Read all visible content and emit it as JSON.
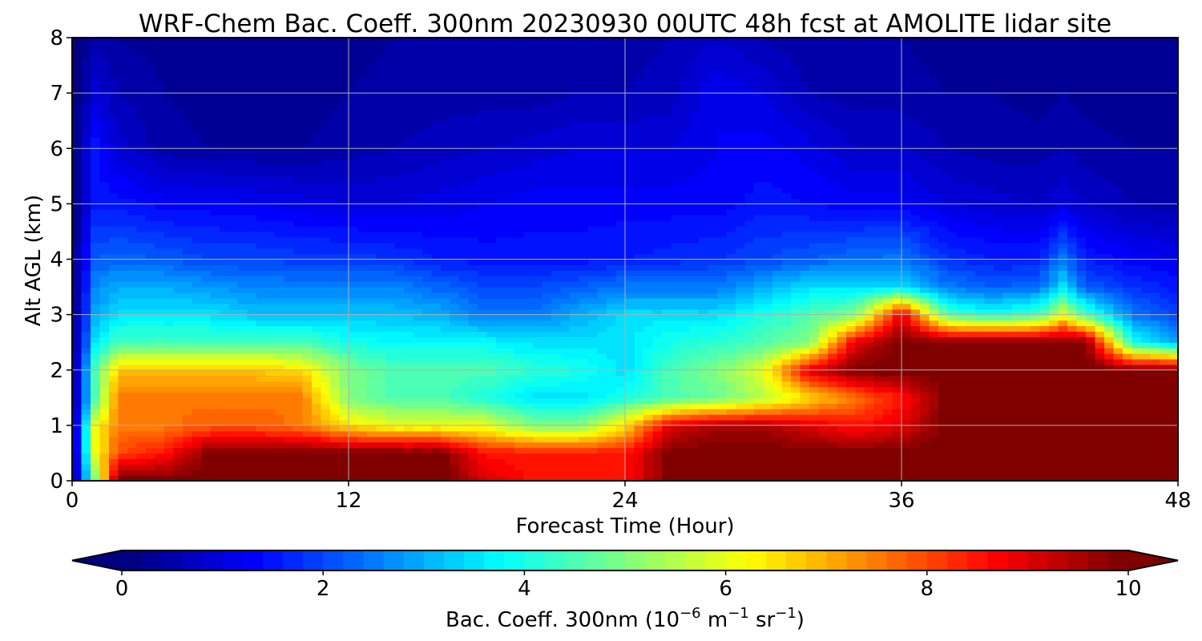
{
  "chart_data": {
    "type": "heatmap",
    "title": "WRF-Chem Bac. Coeff. 300nm  20230930 00UTC 48h fcst at AMOLITE lidar site",
    "xlabel": "Forecast Time (Hour)",
    "ylabel": "Alt AGL (km)",
    "xlim": [
      0,
      48
    ],
    "ylim": [
      0,
      8
    ],
    "xticks": [
      0,
      12,
      24,
      36,
      48
    ],
    "yticks": [
      0,
      1,
      2,
      3,
      4,
      5,
      6,
      7,
      8
    ],
    "grid": true,
    "colormap": "jet",
    "colorbar": {
      "orientation": "horizontal",
      "position": "bottom",
      "range": [
        0,
        10
      ],
      "ticks": [
        0,
        2,
        4,
        6,
        8,
        10
      ],
      "extend": "both",
      "label_main": "Bac. Coeff. 300nm  (10",
      "label_exp1": "−6",
      "label_mid": " m",
      "label_exp2": "−1",
      "label_mid2": " sr",
      "label_exp3": "−1",
      "label_end": ")"
    },
    "x": [
      0,
      1,
      2,
      4,
      6,
      8,
      10,
      12,
      14,
      16,
      18,
      20,
      22,
      24,
      26,
      28,
      30,
      32,
      34,
      36,
      38,
      40,
      42,
      43,
      44,
      46,
      48
    ],
    "y": [
      0,
      0.5,
      1,
      1.5,
      2,
      2.5,
      3,
      3.5,
      4,
      5,
      6,
      7,
      8
    ],
    "z": [
      [
        0,
        5,
        10,
        10,
        10,
        10,
        10,
        10,
        10,
        10,
        9,
        8.5,
        8.5,
        8.5,
        10,
        10,
        10,
        10,
        10,
        10,
        10,
        10,
        10,
        10,
        10,
        10,
        10
      ],
      [
        0,
        6,
        8,
        8.5,
        10,
        10,
        10,
        10,
        10,
        10,
        8.5,
        8.5,
        8.5,
        8.5,
        10,
        10,
        10,
        10,
        10,
        10,
        10,
        10,
        10,
        10,
        10,
        10,
        10
      ],
      [
        0,
        6,
        7.5,
        7.5,
        7.8,
        7.8,
        7.5,
        6.5,
        6,
        6,
        6,
        5,
        5,
        6.5,
        9,
        9.5,
        9.5,
        9,
        8.5,
        9,
        10,
        10,
        10,
        10,
        10,
        10,
        10
      ],
      [
        0,
        4.5,
        7.5,
        7.5,
        7.5,
        7.5,
        7.5,
        5,
        4.5,
        4.5,
        4,
        3.5,
        3.5,
        4,
        4.5,
        4.8,
        5.5,
        6.5,
        7.5,
        8.5,
        10,
        10,
        10,
        10,
        10,
        10,
        10
      ],
      [
        0,
        4.5,
        6.8,
        6.8,
        6.8,
        6.8,
        6.5,
        5,
        4.5,
        4.5,
        4.5,
        4.2,
        4,
        3.5,
        4.5,
        5,
        6,
        9,
        10,
        10,
        10,
        10,
        10,
        10,
        10,
        10,
        10
      ],
      [
        0,
        3.5,
        4.5,
        4.5,
        4.5,
        4.5,
        4.5,
        4,
        3.8,
        3.8,
        3.8,
        3.5,
        3.5,
        3.5,
        4,
        4.2,
        4.5,
        5,
        9,
        10,
        10,
        10,
        10,
        10,
        10,
        4,
        3
      ],
      [
        0,
        3,
        3.5,
        3.5,
        3.5,
        3.2,
        3.2,
        3.2,
        3.2,
        3,
        2.5,
        2.5,
        3,
        3.5,
        3.5,
        3.5,
        4,
        4.5,
        5,
        9,
        4.5,
        4,
        4.5,
        6,
        4.5,
        2.5,
        2
      ],
      [
        0,
        2.6,
        3,
        3,
        2.8,
        2.6,
        2.6,
        2.6,
        2.6,
        2.3,
        2,
        2,
        2.2,
        2.5,
        2.5,
        2.5,
        3,
        3.5,
        3.5,
        3.5,
        2.5,
        2.2,
        2.4,
        3.5,
        2.2,
        1.8,
        1.5
      ],
      [
        0,
        2.2,
        2.3,
        2.2,
        2,
        2,
        1.9,
        1.9,
        1.8,
        1.6,
        1.5,
        1.5,
        1.5,
        1.6,
        1.7,
        1.8,
        2,
        2.2,
        2.4,
        2.5,
        1.8,
        1.6,
        1.6,
        2.5,
        1.6,
        1.3,
        1.2
      ],
      [
        0,
        1.5,
        1.5,
        1.3,
        1.3,
        1.2,
        1.1,
        1,
        1,
        1.1,
        1.2,
        1.3,
        1.3,
        1.3,
        1.3,
        1.3,
        1.5,
        1.4,
        1.3,
        1.3,
        1,
        0.9,
        0.8,
        1,
        0.8,
        0.6,
        0.5
      ],
      [
        0,
        1.5,
        0.9,
        0.5,
        0.4,
        0.4,
        0.4,
        0.5,
        0.6,
        0.7,
        0.8,
        0.9,
        1,
        1,
        1,
        1.2,
        1.3,
        1.1,
        0.8,
        0.8,
        0.6,
        0.5,
        0.5,
        0.6,
        0.5,
        0.4,
        0.4
      ],
      [
        0,
        0.9,
        0.6,
        0.4,
        0.3,
        0.3,
        0.3,
        0.4,
        0.5,
        0.5,
        0.5,
        0.5,
        0.6,
        0.6,
        0.7,
        1.2,
        1,
        0.6,
        0.5,
        0.5,
        0.4,
        0.4,
        0.3,
        0.4,
        0.3,
        0.3,
        0.3
      ],
      [
        0,
        0.5,
        0.4,
        0.3,
        0.3,
        0.3,
        0.3,
        0.3,
        0.4,
        0.4,
        0.4,
        0.4,
        0.5,
        0.5,
        0.6,
        0.8,
        0.6,
        0.4,
        0.4,
        0.4,
        0.3,
        0.3,
        0.3,
        0.3,
        0.3,
        0.3,
        0.3
      ]
    ]
  }
}
